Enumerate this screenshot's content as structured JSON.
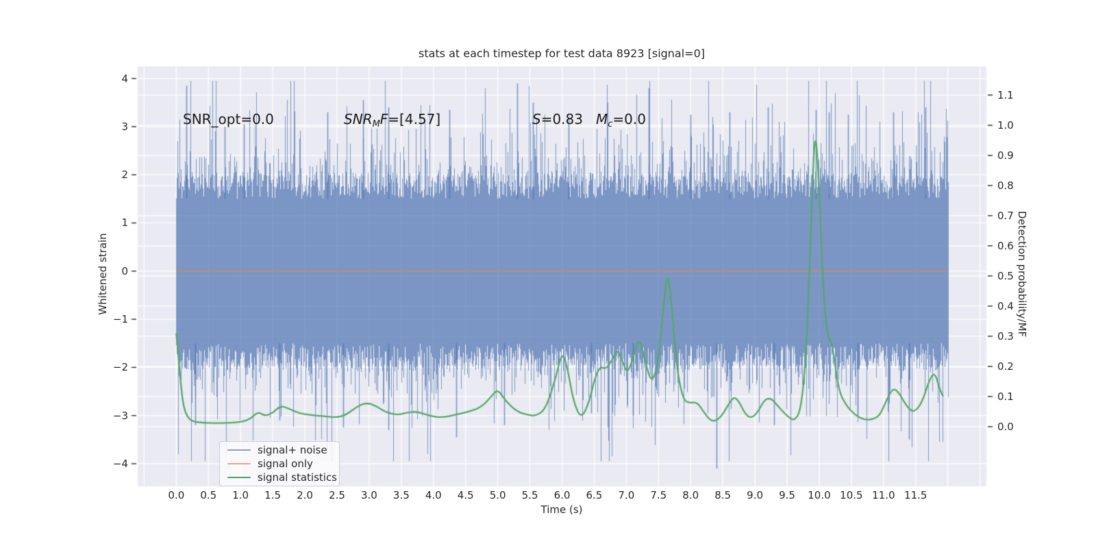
{
  "title": "stats at each timestep for test data 8923 [signal=0]",
  "annotations": {
    "snr_opt": "SNR_opt=0.0",
    "snr_mf": {
      "pre": "SNR",
      "sub": "M",
      "mid": "F",
      "post": "=[4.57]"
    },
    "s": {
      "pre": "S",
      "post": "=0.83"
    },
    "mc": {
      "pre": "M",
      "sub": "c",
      "post": "=0.0"
    }
  },
  "legend": {
    "swatch_colors": [
      "#87a1cc",
      "#e9a285",
      "#4aa368"
    ]
  },
  "chart_data": {
    "type": "line",
    "title": "stats at each timestep for test data 8923 [signal=0]",
    "xlabel": "Time (s)",
    "ylabel_left": "Whitened strain",
    "ylabel_right": "Detection probability/MF",
    "xlim": [
      -0.6,
      12.6
    ],
    "ylim_left": [
      -4.47,
      4.25
    ],
    "ylim_right": [
      -0.198,
      1.195
    ],
    "grid": true,
    "legend_position": "lower left",
    "xtick_labels": [
      "0.0",
      "0.5",
      "1.0",
      "1.5",
      "2.0",
      "2.5",
      "3.0",
      "3.5",
      "4.0",
      "4.5",
      "5.0",
      "5.5",
      "6.0",
      "6.5",
      "7.0",
      "7.5",
      "8.0",
      "8.5",
      "9.0",
      "9.5",
      "10.0",
      "10.5",
      "11.0",
      "11.5"
    ],
    "ytick_labels_left": [
      "4",
      "3",
      "2",
      "1",
      "0",
      "−1",
      "−2",
      "−3",
      "−4"
    ],
    "ytick_labels_right": [
      "1.1",
      "1.0",
      "0.9",
      "0.8",
      "0.7",
      "0.6",
      "0.5",
      "0.4",
      "0.3",
      "0.2",
      "0.1",
      "0.0"
    ],
    "colors": {
      "plot_bg": "#eaeaf2",
      "grid": "#ffffff",
      "noise_rgb": "76,114,176",
      "noise_alpha": 0.7,
      "signal_only": "#dd8452",
      "signal_statistics": "#55a868",
      "tick": "#262626"
    },
    "series": [
      {
        "name": "signal+ noise",
        "axis": "left",
        "type": "noise_band",
        "t_start": 0,
        "t_end": 12,
        "core_min": 1.5,
        "core_max": 2.05,
        "spike_prob": 0.5,
        "spike_scale": 0.55,
        "max": 3.95,
        "seed": 7,
        "notable_highs": [
          [
            0.16,
            3.85
          ],
          [
            0.75,
            3.0
          ],
          [
            1.05,
            3.05
          ],
          [
            2.35,
            3.3
          ],
          [
            2.9,
            3.55
          ],
          [
            3.3,
            3.4
          ],
          [
            4.25,
            3.35
          ],
          [
            5.3,
            3.9
          ],
          [
            5.55,
            3.5
          ],
          [
            6.1,
            3.2
          ],
          [
            7.35,
            3.8
          ],
          [
            8.0,
            3.25
          ],
          [
            8.6,
            3.3
          ],
          [
            9.2,
            3.4
          ],
          [
            9.95,
            3.35
          ],
          [
            10.15,
            3.3
          ],
          [
            10.45,
            3.25
          ],
          [
            11.15,
            3.3
          ],
          [
            11.65,
            3.4
          ]
        ],
        "notable_lows": [
          [
            0.3,
            -3.2
          ],
          [
            1.6,
            -3.1
          ],
          [
            2.6,
            -3.25
          ],
          [
            3.3,
            -3.3
          ],
          [
            4.35,
            -3.45
          ],
          [
            5.1,
            -3.2
          ],
          [
            6.45,
            -2.95
          ],
          [
            7.1,
            -3.0
          ],
          [
            8.4,
            -4.1
          ],
          [
            9.3,
            -3.2
          ],
          [
            10.6,
            -3.0
          ],
          [
            11.4,
            -3.5
          ]
        ]
      },
      {
        "name": "signal only",
        "axis": "left",
        "type": "constant",
        "value": 0,
        "t_start": 0,
        "t_end": 12
      },
      {
        "name": "signal statistics",
        "axis": "right",
        "type": "line",
        "points": [
          [
            0.0,
            0.31
          ],
          [
            0.04,
            0.22
          ],
          [
            0.08,
            0.12
          ],
          [
            0.12,
            0.06
          ],
          [
            0.18,
            0.03
          ],
          [
            0.25,
            0.018
          ],
          [
            0.4,
            0.013
          ],
          [
            0.6,
            0.012
          ],
          [
            0.8,
            0.012
          ],
          [
            1.0,
            0.015
          ],
          [
            1.15,
            0.025
          ],
          [
            1.27,
            0.05
          ],
          [
            1.38,
            0.035
          ],
          [
            1.5,
            0.045
          ],
          [
            1.62,
            0.07
          ],
          [
            1.75,
            0.06
          ],
          [
            1.9,
            0.045
          ],
          [
            2.1,
            0.038
          ],
          [
            2.3,
            0.035
          ],
          [
            2.5,
            0.03
          ],
          [
            2.65,
            0.04
          ],
          [
            2.8,
            0.065
          ],
          [
            2.95,
            0.08
          ],
          [
            3.1,
            0.07
          ],
          [
            3.25,
            0.048
          ],
          [
            3.45,
            0.038
          ],
          [
            3.6,
            0.048
          ],
          [
            3.75,
            0.05
          ],
          [
            3.95,
            0.035
          ],
          [
            4.15,
            0.03
          ],
          [
            4.35,
            0.04
          ],
          [
            4.55,
            0.05
          ],
          [
            4.75,
            0.065
          ],
          [
            4.9,
            0.1
          ],
          [
            5.0,
            0.125
          ],
          [
            5.12,
            0.085
          ],
          [
            5.3,
            0.05
          ],
          [
            5.45,
            0.04
          ],
          [
            5.6,
            0.035
          ],
          [
            5.75,
            0.06
          ],
          [
            5.9,
            0.16
          ],
          [
            6.0,
            0.25
          ],
          [
            6.08,
            0.2
          ],
          [
            6.18,
            0.08
          ],
          [
            6.3,
            0.025
          ],
          [
            6.42,
            0.08
          ],
          [
            6.52,
            0.17
          ],
          [
            6.6,
            0.2
          ],
          [
            6.68,
            0.19
          ],
          [
            6.78,
            0.22
          ],
          [
            6.86,
            0.26
          ],
          [
            6.95,
            0.21
          ],
          [
            7.02,
            0.175
          ],
          [
            7.12,
            0.24
          ],
          [
            7.2,
            0.3
          ],
          [
            7.3,
            0.21
          ],
          [
            7.4,
            0.14
          ],
          [
            7.5,
            0.22
          ],
          [
            7.58,
            0.4
          ],
          [
            7.64,
            0.52
          ],
          [
            7.7,
            0.42
          ],
          [
            7.78,
            0.2
          ],
          [
            7.88,
            0.09
          ],
          [
            7.98,
            0.078
          ],
          [
            8.1,
            0.082
          ],
          [
            8.2,
            0.05
          ],
          [
            8.32,
            0.016
          ],
          [
            8.45,
            0.025
          ],
          [
            8.58,
            0.07
          ],
          [
            8.67,
            0.1
          ],
          [
            8.75,
            0.085
          ],
          [
            8.85,
            0.04
          ],
          [
            8.95,
            0.028
          ],
          [
            9.05,
            0.05
          ],
          [
            9.15,
            0.09
          ],
          [
            9.25,
            0.095
          ],
          [
            9.35,
            0.07
          ],
          [
            9.5,
            0.035
          ],
          [
            9.62,
            0.018
          ],
          [
            9.72,
            0.06
          ],
          [
            9.8,
            0.25
          ],
          [
            9.87,
            0.65
          ],
          [
            9.93,
            1.0
          ],
          [
            9.99,
            0.85
          ],
          [
            10.05,
            0.5
          ],
          [
            10.12,
            0.3
          ],
          [
            10.2,
            0.28
          ],
          [
            10.3,
            0.12
          ],
          [
            10.42,
            0.07
          ],
          [
            10.55,
            0.04
          ],
          [
            10.7,
            0.022
          ],
          [
            10.85,
            0.025
          ],
          [
            10.95,
            0.04
          ],
          [
            11.05,
            0.09
          ],
          [
            11.15,
            0.13
          ],
          [
            11.25,
            0.11
          ],
          [
            11.35,
            0.07
          ],
          [
            11.47,
            0.045
          ],
          [
            11.6,
            0.08
          ],
          [
            11.72,
            0.16
          ],
          [
            11.8,
            0.18
          ],
          [
            11.88,
            0.12
          ],
          [
            11.93,
            0.1
          ]
        ]
      }
    ]
  }
}
